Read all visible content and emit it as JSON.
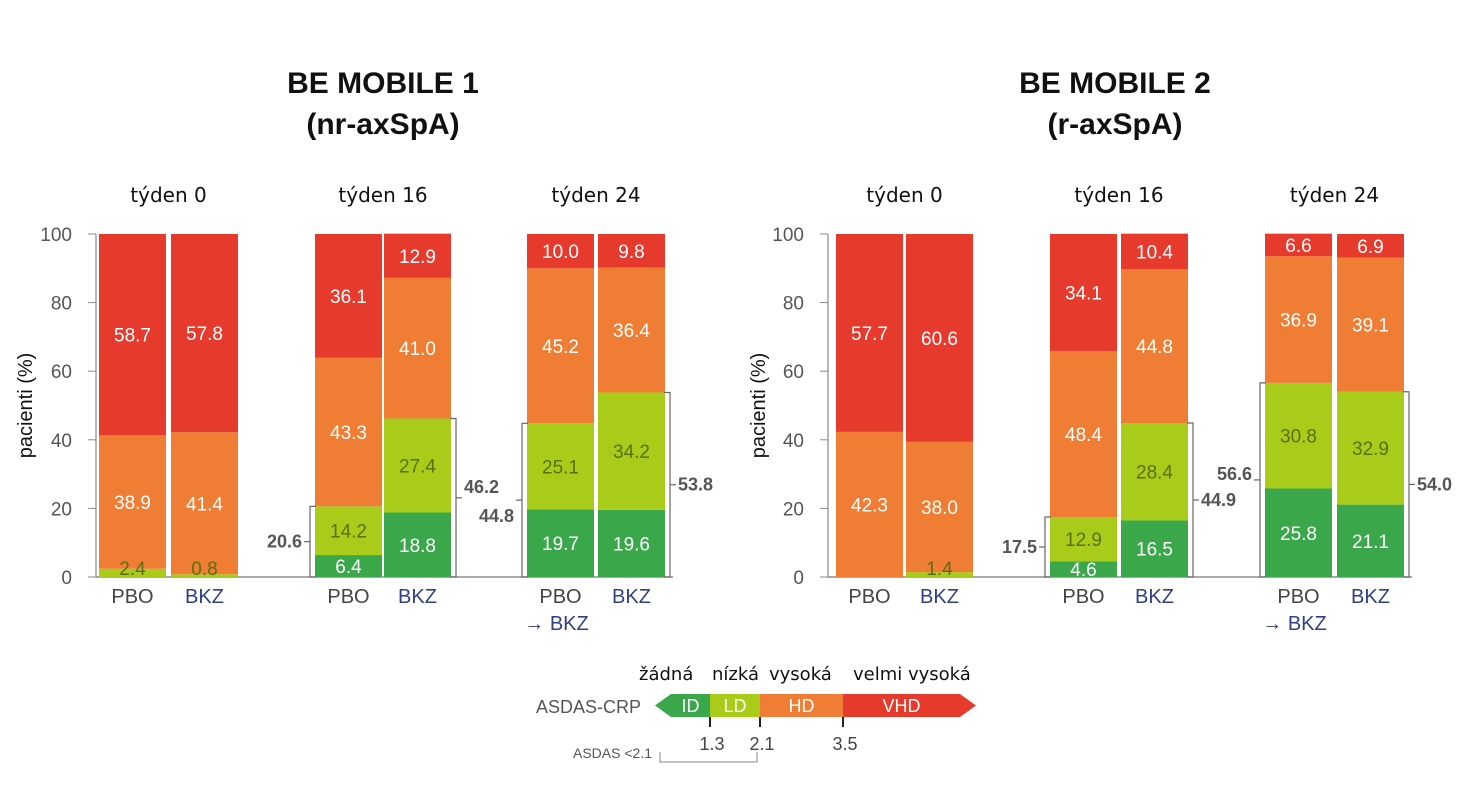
{
  "chart_data": [
    {
      "type": "bar",
      "stacked": true,
      "title": "BE MOBILE 1",
      "subtitle": "(nr-axSpA)",
      "ylabel": "pacienti (%)",
      "ylim": [
        0,
        100
      ],
      "yticks": [
        0,
        20,
        40,
        60,
        80,
        100
      ],
      "groups": [
        {
          "label": "týden 0",
          "bars": [
            {
              "label": "PBO",
              "label_line2": "",
              "values": [
                0,
                2.4,
                38.9,
                58.7
              ]
            },
            {
              "label": "BKZ",
              "label_line2": "",
              "values": [
                0,
                0.8,
                41.4,
                57.8
              ]
            }
          ]
        },
        {
          "label": "týden 16",
          "bars": [
            {
              "label": "PBO",
              "label_line2": "",
              "values": [
                6.4,
                14.2,
                43.3,
                36.1
              ],
              "bracket": "20.6"
            },
            {
              "label": "BKZ",
              "label_line2": "",
              "values": [
                18.8,
                27.4,
                41.0,
                12.9
              ],
              "bracket": "46.2"
            }
          ]
        },
        {
          "label": "týden 24",
          "bars": [
            {
              "label": "PBO",
              "label_line2": "→ BKZ",
              "values": [
                19.7,
                25.1,
                45.2,
                10.0
              ],
              "bracket": "44.8"
            },
            {
              "label": "BKZ",
              "label_line2": "",
              "values": [
                19.6,
                34.2,
                36.4,
                9.8
              ],
              "bracket": "53.8"
            }
          ]
        }
      ]
    },
    {
      "type": "bar",
      "stacked": true,
      "title": "BE MOBILE 2",
      "subtitle": "(r-axSpA)",
      "ylabel": "pacienti (%)",
      "ylim": [
        0,
        100
      ],
      "yticks": [
        0,
        20,
        40,
        60,
        80,
        100
      ],
      "groups": [
        {
          "label": "týden 0",
          "bars": [
            {
              "label": "PBO",
              "label_line2": "",
              "values": [
                0,
                0,
                42.3,
                57.7
              ]
            },
            {
              "label": "BKZ",
              "label_line2": "",
              "values": [
                0,
                1.4,
                38.0,
                60.6
              ]
            }
          ]
        },
        {
          "label": "týden 16",
          "bars": [
            {
              "label": "PBO",
              "label_line2": "",
              "values": [
                4.6,
                12.9,
                48.4,
                34.1
              ],
              "bracket": "17.5"
            },
            {
              "label": "BKZ",
              "label_line2": "",
              "values": [
                16.5,
                28.4,
                44.8,
                10.4
              ],
              "bracket": "44.9"
            }
          ]
        },
        {
          "label": "týden 24",
          "bars": [
            {
              "label": "PBO",
              "label_line2": "→ BKZ",
              "values": [
                25.8,
                30.8,
                36.9,
                6.6
              ],
              "bracket": "56.6"
            },
            {
              "label": "BKZ",
              "label_line2": "",
              "values": [
                21.1,
                32.9,
                39.1,
                6.9
              ],
              "bracket": "54.0"
            }
          ]
        }
      ]
    }
  ],
  "legend": {
    "title": "ASDAS-CRP",
    "categories": [
      {
        "heading": "žádná",
        "code": "ID",
        "color": "#3aa84a"
      },
      {
        "heading": "nízká",
        "code": "LD",
        "color": "#a9cc1a"
      },
      {
        "heading": "vysoká",
        "code": "HD",
        "color": "#ef7d33"
      },
      {
        "heading": "velmi vysoká",
        "code": "VHD",
        "color": "#e63a2d"
      }
    ],
    "thresholds": [
      "1.3",
      "2.1",
      "3.5"
    ],
    "note": "ASDAS <2.1"
  },
  "colors": {
    "ID": "#3aa84a",
    "LD": "#a9cc1a",
    "HD": "#ef7d33",
    "VHD": "#e63a2d",
    "LD_text": "#5d6e10"
  }
}
